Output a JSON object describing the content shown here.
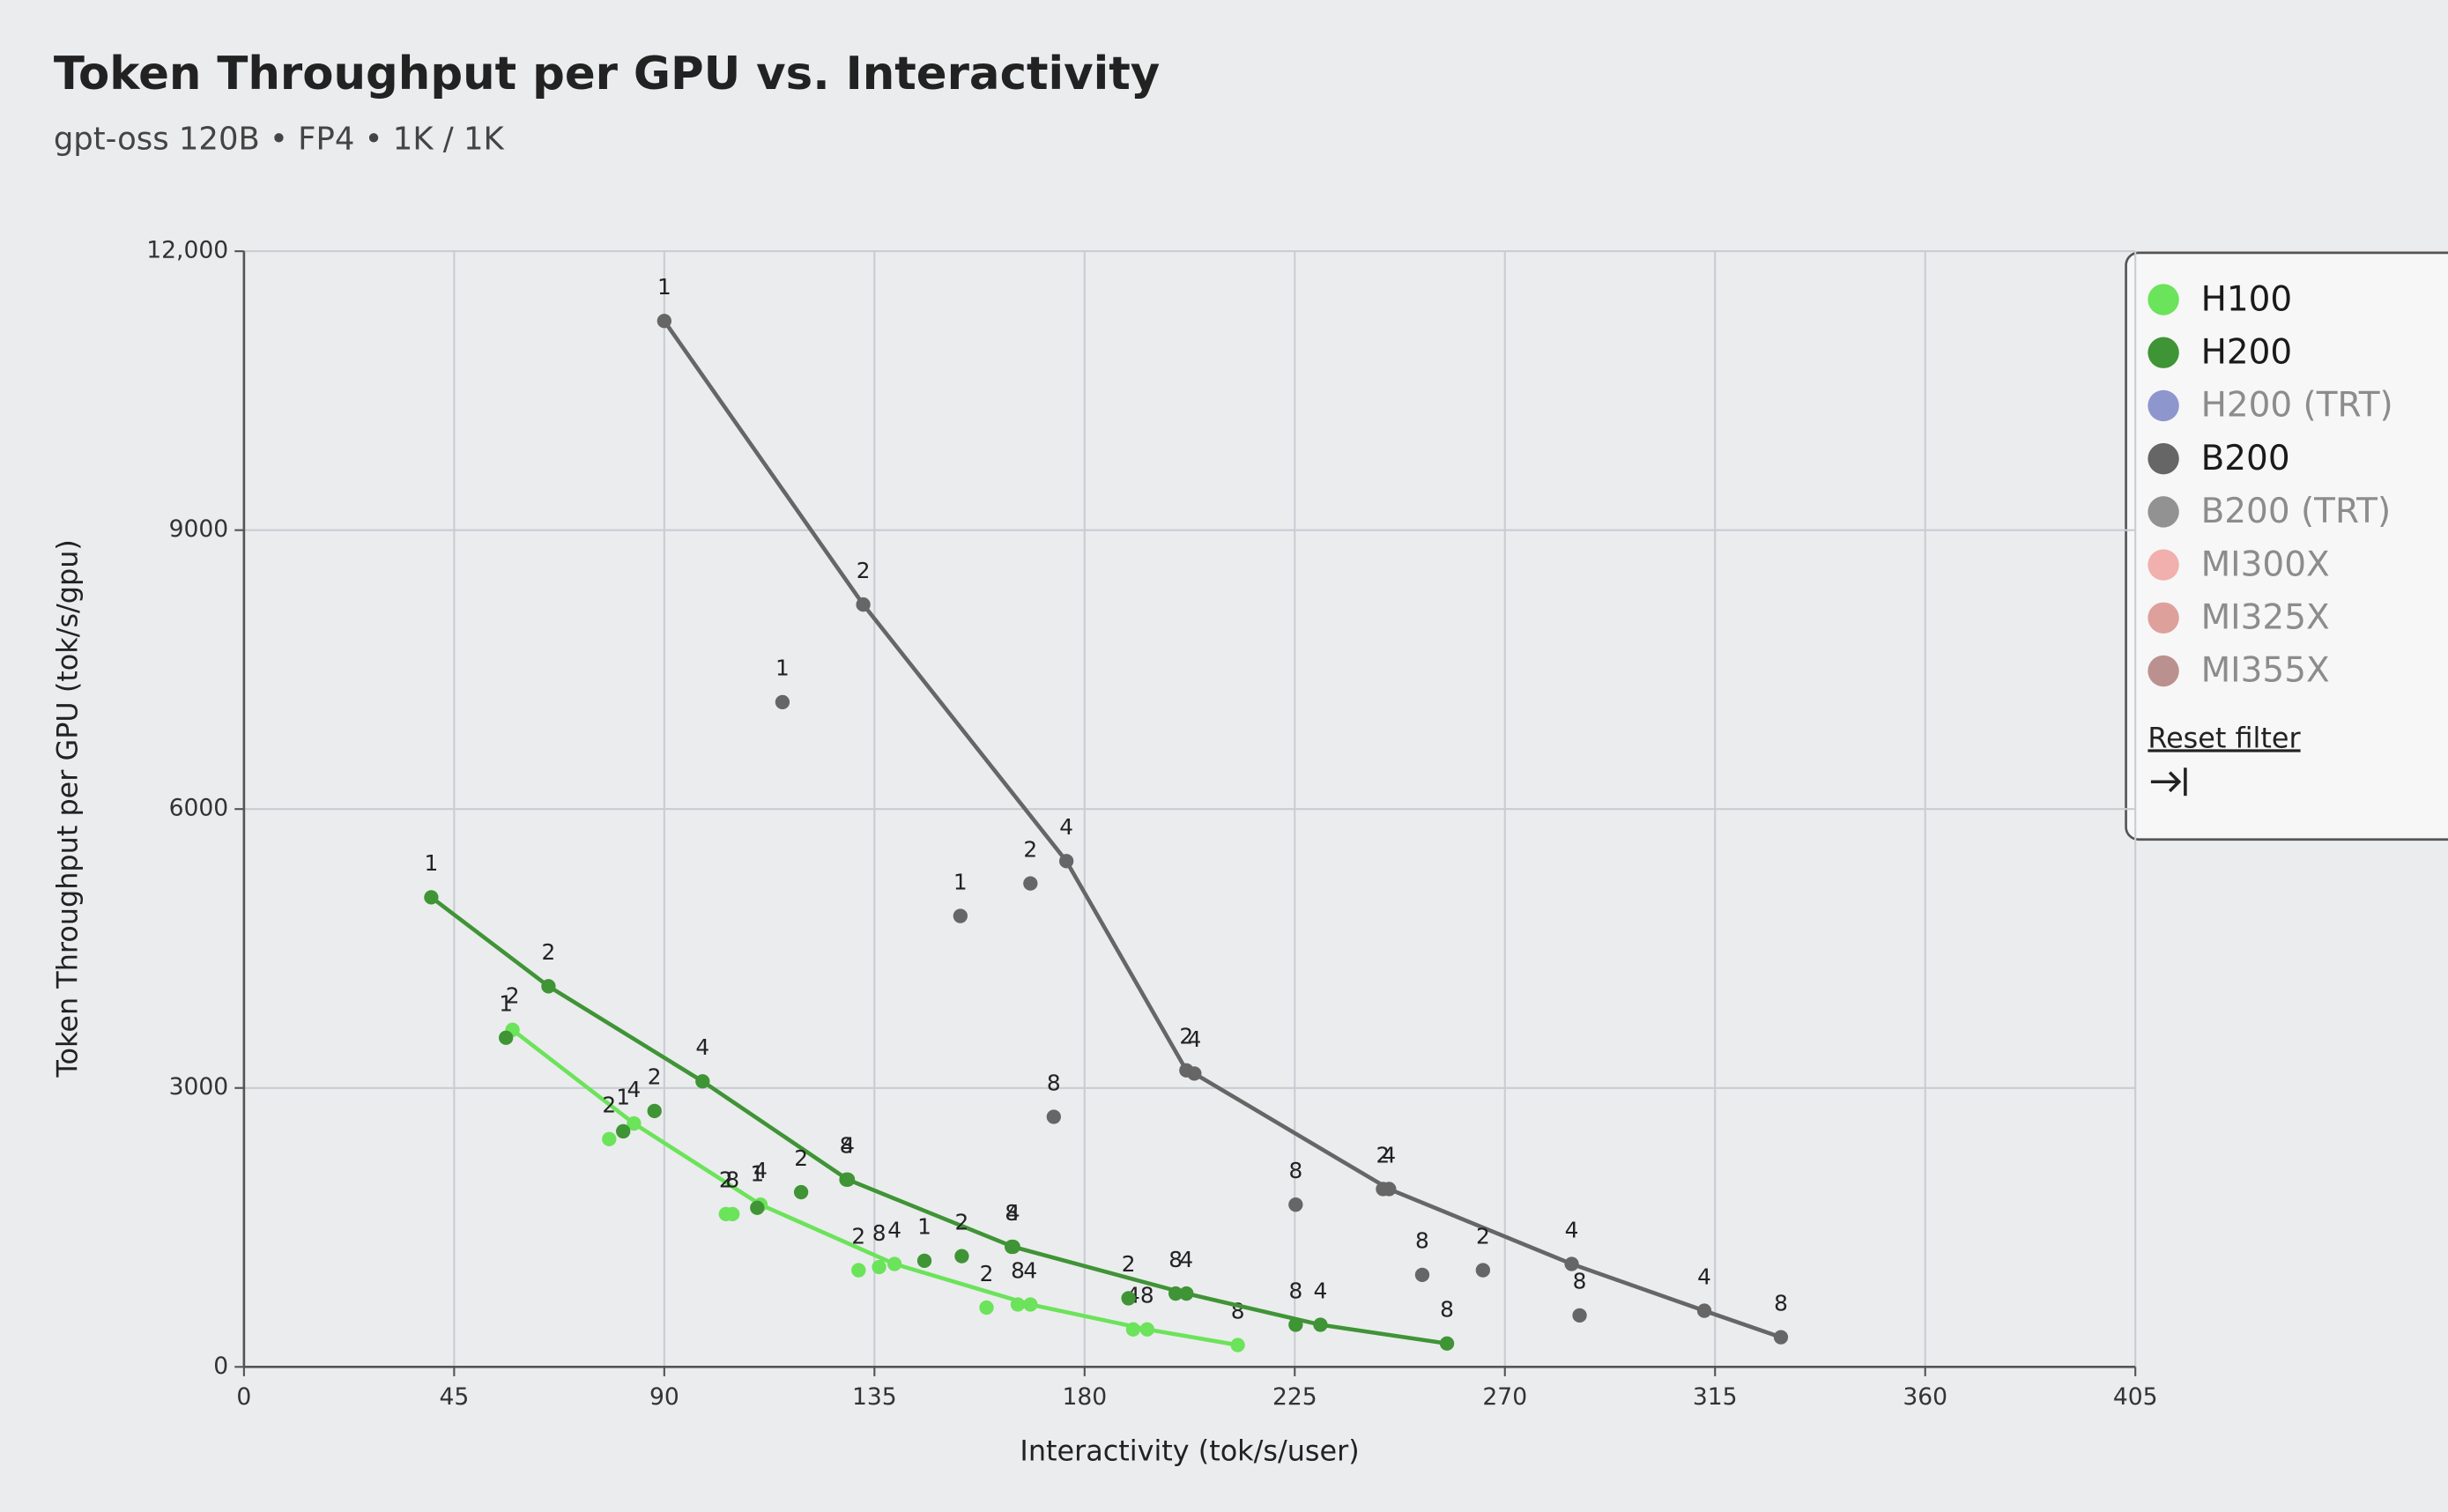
{
  "chart_data": {
    "type": "scatter",
    "title": "Token Throughput per GPU vs. Interactivity",
    "subtitle": "gpt-oss 120B • FP4 • 1K / 1K",
    "x_label": "Interactivity (tok/s/user)",
    "y_label": "Token Throughput per GPU (tok/s/gpu)",
    "xlim": [
      0,
      405
    ],
    "xticks": [
      0,
      45,
      90,
      135,
      180,
      225,
      270,
      315,
      360,
      405
    ],
    "ylim": [
      0,
      12000
    ],
    "yticks": [
      0,
      3000,
      6000,
      9000,
      {
        "value": 12000,
        "label": "12,000"
      }
    ],
    "grid": true,
    "legend": "top-right",
    "reset_label": "Reset filter",
    "series": [
      {
        "name": "H100",
        "color": "#6be35a",
        "active": true,
        "x": [
          57.5,
          78.2,
          83.5,
          103.2,
          104.6,
          110.6,
          131.6,
          136,
          139.3,
          159,
          165.7,
          168.4,
          190.4,
          193.4,
          212.8
        ],
        "y": [
          3625,
          2450,
          2618,
          1644,
          1644,
          1745,
          1040,
          1074,
          1107,
          638,
          671,
          671,
          403,
          403,
          235
        ],
        "labels": [
          2,
          2,
          4,
          2,
          8,
          4,
          2,
          8,
          4,
          2,
          8,
          4,
          4,
          8,
          8
        ]
      },
      {
        "name": "H200",
        "color": "#3f9436",
        "active": true,
        "x": [
          40.1,
          65.2,
          56.1,
          81.2,
          87.9,
          98.2,
          109.9,
          119.3,
          129,
          129.3,
          145.7,
          153.7,
          164.4,
          164.7,
          189.4,
          199.5,
          201.8,
          225.2,
          230.5,
          257.6
        ],
        "y": [
          5051,
          4094,
          3540,
          2534,
          2752,
          3071,
          1711,
          1879,
          2014,
          2014,
          1141,
          1191,
          1292,
          1292,
          738,
          789,
          789,
          453,
          453,
          252
        ],
        "labels": [
          1,
          2,
          1,
          1,
          2,
          4,
          1,
          2,
          8,
          4,
          1,
          2,
          8,
          4,
          2,
          8,
          4,
          8,
          4,
          8
        ]
      },
      {
        "name": "H200 (TRT)",
        "color": "#7a85c6",
        "active": false,
        "x": [],
        "y": [],
        "labels": []
      },
      {
        "name": "B200",
        "color": "#666666",
        "active": true,
        "x": [
          90,
          132.6,
          115.3,
          176.1,
          153.4,
          168.4,
          173.4,
          201.8,
          203.5,
          225.2,
          243.9,
          245.2,
          252.3,
          265.3,
          284.3,
          286,
          312.7,
          329.1
        ],
        "y": [
          11250,
          8200,
          7150,
          5440,
          4850,
          5200,
          2690,
          3190,
          3155,
          1745,
          1913,
          1913,
          990,
          1040,
          1107,
          554,
          604,
          319
        ],
        "labels": [
          1,
          2,
          1,
          4,
          1,
          2,
          8,
          2,
          4,
          8,
          2,
          4,
          8,
          2,
          4,
          8,
          4,
          8
        ]
      },
      {
        "name": "B200 (TRT)",
        "color": "#808080",
        "active": false,
        "x": [],
        "y": [],
        "labels": []
      },
      {
        "name": "MI300X",
        "color": "#f0a3a0",
        "active": false,
        "x": [],
        "y": [],
        "labels": []
      },
      {
        "name": "MI325X",
        "color": "#d9908b",
        "active": false,
        "x": [],
        "y": [],
        "labels": []
      },
      {
        "name": "MI355X",
        "color": "#b07f7c",
        "active": false,
        "x": [],
        "y": [],
        "labels": []
      }
    ]
  }
}
